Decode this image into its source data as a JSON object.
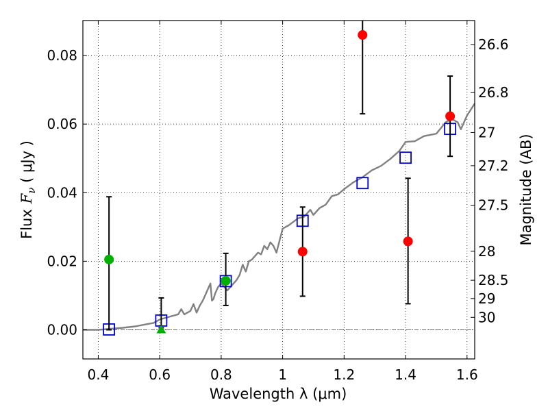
{
  "chart_data": {
    "type": "scatter",
    "xlabel": "Wavelength  λ (μm)",
    "ylabel_prefix": "Flux",
    "ylabel_symbol": "F",
    "ylabel_sub": "ν",
    "ylabel_units": " ( μJy )",
    "y2label": "Magnitude (AB)",
    "xlim": [
      0.35,
      1.625
    ],
    "ylim": [
      -0.0085,
      0.0902
    ],
    "grid": true,
    "x_ticks": [
      {
        "value": 0.4,
        "label": "0.4"
      },
      {
        "value": 0.6,
        "label": "0.6"
      },
      {
        "value": 0.8,
        "label": "0.8"
      },
      {
        "value": 1.0,
        "label": "1"
      },
      {
        "value": 1.2,
        "label": "1.2"
      },
      {
        "value": 1.4,
        "label": "1.4"
      },
      {
        "value": 1.6,
        "label": "1.6"
      }
    ],
    "y_ticks": [
      {
        "value": 0.0,
        "label": "0.00"
      },
      {
        "value": 0.02,
        "label": "0.02"
      },
      {
        "value": 0.04,
        "label": "0.04"
      },
      {
        "value": 0.06,
        "label": "0.06"
      },
      {
        "value": 0.08,
        "label": "0.08"
      }
    ],
    "mag_ticks": [
      {
        "value": 26.6,
        "label": "26.6"
      },
      {
        "value": 26.8,
        "label": "26.8"
      },
      {
        "value": 27.0,
        "label": "27"
      },
      {
        "value": 27.2,
        "label": "27.2"
      },
      {
        "value": 27.5,
        "label": "27.5"
      },
      {
        "value": 28.0,
        "label": "28"
      },
      {
        "value": 28.5,
        "label": "28.5"
      },
      {
        "value": 29.0,
        "label": "29"
      },
      {
        "value": 30.0,
        "label": "30"
      }
    ],
    "series": [
      {
        "name": "model spectrum",
        "type": "line",
        "color": "#808080",
        "points": [
          [
            0.35,
            0.0
          ],
          [
            0.4,
            0.0
          ],
          [
            0.44,
            0.0003
          ],
          [
            0.48,
            0.0006
          ],
          [
            0.52,
            0.001
          ],
          [
            0.55,
            0.0015
          ],
          [
            0.58,
            0.002
          ],
          [
            0.6,
            0.003
          ],
          [
            0.62,
            0.0035
          ],
          [
            0.64,
            0.004
          ],
          [
            0.66,
            0.0045
          ],
          [
            0.67,
            0.006
          ],
          [
            0.68,
            0.0045
          ],
          [
            0.7,
            0.0055
          ],
          [
            0.71,
            0.0075
          ],
          [
            0.72,
            0.005
          ],
          [
            0.73,
            0.007
          ],
          [
            0.74,
            0.0085
          ],
          [
            0.75,
            0.0105
          ],
          [
            0.76,
            0.0125
          ],
          [
            0.765,
            0.0135
          ],
          [
            0.77,
            0.0085
          ],
          [
            0.775,
            0.009
          ],
          [
            0.78,
            0.0105
          ],
          [
            0.79,
            0.0125
          ],
          [
            0.8,
            0.0135
          ],
          [
            0.82,
            0.0115
          ],
          [
            0.84,
            0.0135
          ],
          [
            0.85,
            0.0145
          ],
          [
            0.86,
            0.016
          ],
          [
            0.87,
            0.019
          ],
          [
            0.88,
            0.017
          ],
          [
            0.89,
            0.02
          ],
          [
            0.9,
            0.0205
          ],
          [
            0.91,
            0.0215
          ],
          [
            0.92,
            0.0225
          ],
          [
            0.93,
            0.022
          ],
          [
            0.94,
            0.0245
          ],
          [
            0.95,
            0.0235
          ],
          [
            0.96,
            0.0255
          ],
          [
            0.97,
            0.0245
          ],
          [
            0.98,
            0.0225
          ],
          [
            0.99,
            0.026
          ],
          [
            1.0,
            0.0295
          ],
          [
            1.02,
            0.0305
          ],
          [
            1.05,
            0.0325
          ],
          [
            1.07,
            0.033
          ],
          [
            1.09,
            0.035
          ],
          [
            1.1,
            0.0335
          ],
          [
            1.12,
            0.0355
          ],
          [
            1.14,
            0.0365
          ],
          [
            1.16,
            0.039
          ],
          [
            1.18,
            0.0395
          ],
          [
            1.2,
            0.041
          ],
          [
            1.23,
            0.043
          ],
          [
            1.26,
            0.0445
          ],
          [
            1.29,
            0.0465
          ],
          [
            1.32,
            0.0478
          ],
          [
            1.35,
            0.0498
          ],
          [
            1.38,
            0.0522
          ],
          [
            1.4,
            0.0548
          ],
          [
            1.43,
            0.055
          ],
          [
            1.46,
            0.0565
          ],
          [
            1.5,
            0.0572
          ],
          [
            1.53,
            0.0605
          ],
          [
            1.55,
            0.0615
          ],
          [
            1.57,
            0.0605
          ],
          [
            1.58,
            0.0585
          ],
          [
            1.6,
            0.0625
          ],
          [
            1.625,
            0.066
          ]
        ]
      },
      {
        "name": "model photometry",
        "type": "scatter",
        "marker": "square-open",
        "color": "#0000cc",
        "points": [
          [
            0.435,
            0.0001
          ],
          [
            0.605,
            0.0027
          ],
          [
            0.815,
            0.0142
          ],
          [
            1.065,
            0.0318
          ],
          [
            1.26,
            0.0428
          ],
          [
            1.4,
            0.0502
          ],
          [
            1.545,
            0.0586
          ]
        ]
      },
      {
        "name": "detections",
        "type": "scatter",
        "marker": "circle",
        "color": "#ff0000",
        "points": [
          {
            "x": 1.065,
            "y": 0.0228,
            "err": [
              0.0098,
              0.0358
            ]
          },
          {
            "x": 1.26,
            "y": 0.086,
            "err": [
              0.063,
              0.0902
            ]
          },
          {
            "x": 1.408,
            "y": 0.0258,
            "err": [
              0.0076,
              0.0442
            ]
          },
          {
            "x": 1.545,
            "y": 0.0623,
            "err": [
              0.0506,
              0.074
            ]
          }
        ]
      },
      {
        "name": "optical points",
        "type": "scatter",
        "marker": "circle",
        "color": "#00b000",
        "points": [
          {
            "x": 0.435,
            "y": 0.0205,
            "err": [
              0.0,
              0.0388
            ]
          },
          {
            "x": 0.815,
            "y": 0.0143,
            "err": [
              0.0071,
              0.0223
            ]
          }
        ]
      },
      {
        "name": "upper limit",
        "type": "scatter",
        "marker": "triangle",
        "color": "#00b000",
        "points": [
          {
            "x": 0.605,
            "y": 0.0,
            "err": [
              0.0006,
              0.0093
            ]
          }
        ]
      }
    ]
  }
}
